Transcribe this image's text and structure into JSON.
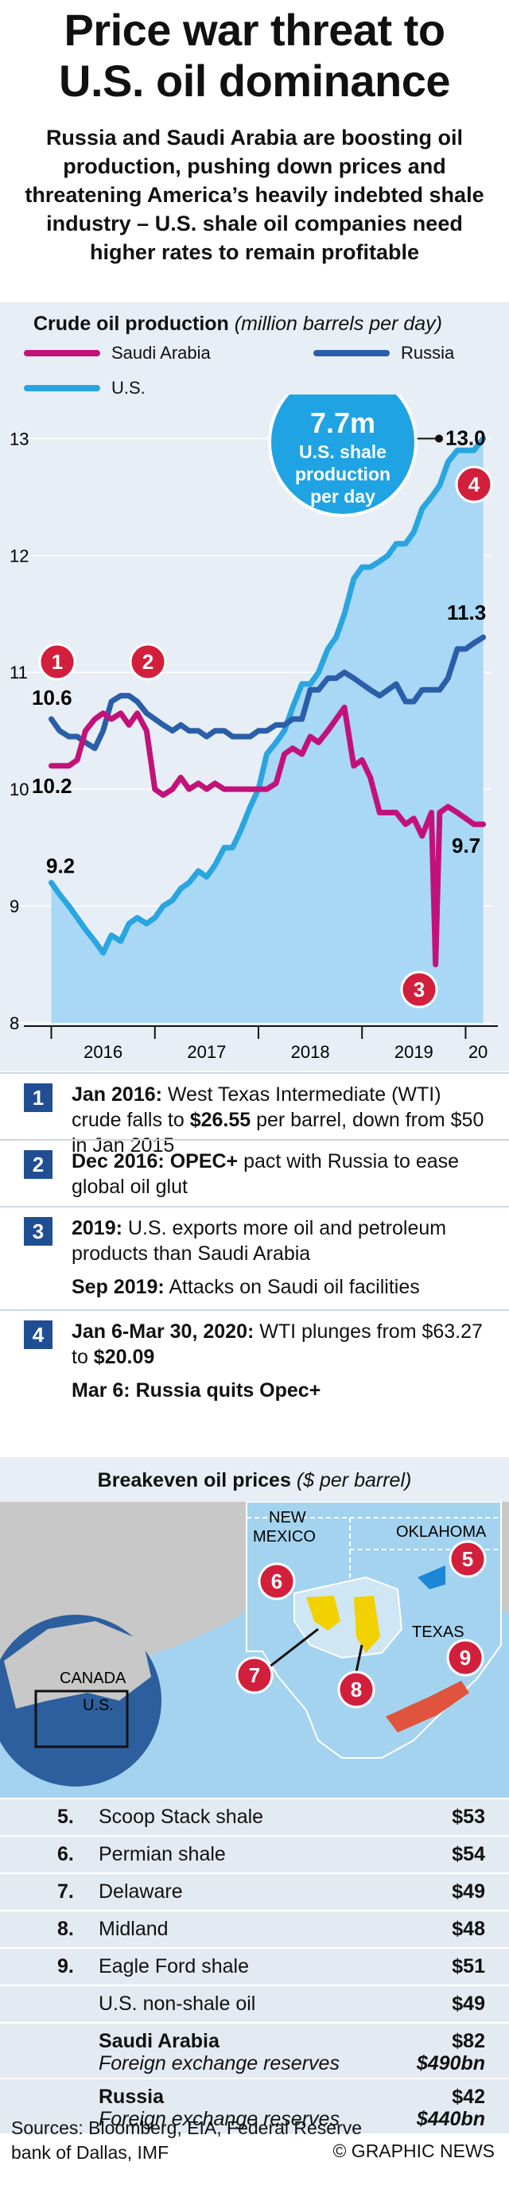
{
  "title_line1": "Price war threat to",
  "title_line2": "U.S. oil dominance",
  "subtitle": "Russia and Saudi Arabia are boosting oil production, pushing down prices and threatening America’s heavily indebted shale industry – U.S. shale oil companies need higher rates to remain profitable",
  "chart_data": {
    "type": "line",
    "title": "Crude oil production",
    "title_unit": "(million barrels per day)",
    "ylim": [
      8,
      13.2
    ],
    "yticks": [
      8,
      9,
      10,
      11,
      12,
      13
    ],
    "x_range": [
      2015.95,
      2020.25
    ],
    "xticks": [
      "2016",
      "2017",
      "2018",
      "2019",
      "20"
    ],
    "legend": [
      "Saudi Arabia",
      "Russia",
      "U.S."
    ],
    "series": [
      {
        "name": "Saudi Arabia",
        "color": "#c2127a",
        "x": [
          2016.0,
          2016.08,
          2016.17,
          2016.25,
          2016.33,
          2016.42,
          2016.5,
          2016.58,
          2016.67,
          2016.75,
          2016.83,
          2016.92,
          2017.0,
          2017.08,
          2017.17,
          2017.25,
          2017.33,
          2017.42,
          2017.5,
          2017.58,
          2017.67,
          2017.75,
          2017.83,
          2017.92,
          2018.0,
          2018.08,
          2018.17,
          2018.25,
          2018.33,
          2018.42,
          2018.5,
          2018.58,
          2018.67,
          2018.75,
          2018.83,
          2018.92,
          2019.0,
          2019.08,
          2019.17,
          2019.25,
          2019.33,
          2019.42,
          2019.5,
          2019.58,
          2019.67,
          2019.71,
          2019.75,
          2019.83,
          2019.92,
          2020.0,
          2020.08,
          2020.17
        ],
        "values": [
          10.2,
          10.2,
          10.2,
          10.25,
          10.5,
          10.6,
          10.65,
          10.6,
          10.65,
          10.55,
          10.65,
          10.5,
          10.0,
          9.95,
          10.0,
          10.1,
          10.0,
          10.05,
          10.0,
          10.05,
          10.0,
          10.0,
          10.0,
          10.0,
          10.0,
          10.0,
          10.05,
          10.3,
          10.35,
          10.3,
          10.45,
          10.4,
          10.5,
          10.6,
          10.7,
          10.2,
          10.25,
          10.1,
          9.8,
          9.8,
          9.8,
          9.7,
          9.75,
          9.6,
          9.8,
          8.5,
          9.8,
          9.85,
          9.8,
          9.75,
          9.7,
          9.7
        ]
      },
      {
        "name": "Russia",
        "color": "#2a5ea8",
        "x": [
          2016.0,
          2016.08,
          2016.17,
          2016.25,
          2016.33,
          2016.42,
          2016.5,
          2016.58,
          2016.67,
          2016.75,
          2016.83,
          2016.92,
          2017.0,
          2017.08,
          2017.17,
          2017.25,
          2017.33,
          2017.42,
          2017.5,
          2017.58,
          2017.67,
          2017.75,
          2017.83,
          2017.92,
          2018.0,
          2018.08,
          2018.17,
          2018.25,
          2018.33,
          2018.42,
          2018.5,
          2018.58,
          2018.67,
          2018.75,
          2018.83,
          2018.92,
          2019.0,
          2019.08,
          2019.17,
          2019.25,
          2019.33,
          2019.42,
          2019.5,
          2019.58,
          2019.67,
          2019.75,
          2019.83,
          2019.92,
          2020.0,
          2020.08,
          2020.17
        ],
        "values": [
          10.6,
          10.5,
          10.45,
          10.45,
          10.4,
          10.35,
          10.5,
          10.75,
          10.8,
          10.8,
          10.75,
          10.65,
          10.6,
          10.55,
          10.5,
          10.55,
          10.5,
          10.5,
          10.45,
          10.5,
          10.5,
          10.45,
          10.45,
          10.45,
          10.5,
          10.5,
          10.55,
          10.55,
          10.6,
          10.6,
          10.85,
          10.85,
          10.95,
          10.95,
          11.0,
          10.95,
          10.9,
          10.85,
          10.8,
          10.85,
          10.9,
          10.75,
          10.75,
          10.85,
          10.85,
          10.85,
          10.95,
          11.2,
          11.2,
          11.25,
          11.3
        ]
      },
      {
        "name": "U.S.",
        "color": "#29a5e0",
        "x": [
          2016.0,
          2016.08,
          2016.17,
          2016.25,
          2016.33,
          2016.42,
          2016.5,
          2016.58,
          2016.67,
          2016.75,
          2016.83,
          2016.92,
          2017.0,
          2017.08,
          2017.17,
          2017.25,
          2017.33,
          2017.42,
          2017.5,
          2017.58,
          2017.67,
          2017.75,
          2017.83,
          2017.92,
          2018.0,
          2018.08,
          2018.17,
          2018.25,
          2018.33,
          2018.42,
          2018.5,
          2018.58,
          2018.67,
          2018.75,
          2018.83,
          2018.92,
          2019.0,
          2019.08,
          2019.17,
          2019.25,
          2019.33,
          2019.42,
          2019.5,
          2019.58,
          2019.67,
          2019.75,
          2019.83,
          2019.92,
          2020.0,
          2020.08,
          2020.17
        ],
        "values": [
          9.2,
          9.1,
          9.0,
          8.9,
          8.8,
          8.7,
          8.6,
          8.75,
          8.7,
          8.85,
          8.9,
          8.85,
          8.9,
          9.0,
          9.05,
          9.15,
          9.2,
          9.3,
          9.25,
          9.35,
          9.5,
          9.5,
          9.65,
          9.85,
          10.0,
          10.3,
          10.4,
          10.5,
          10.7,
          10.9,
          10.9,
          11.0,
          11.2,
          11.3,
          11.5,
          11.8,
          11.9,
          11.9,
          11.95,
          12.0,
          12.1,
          12.1,
          12.2,
          12.4,
          12.5,
          12.6,
          12.8,
          12.9,
          12.9,
          12.9,
          13.0
        ]
      }
    ],
    "annotations": {
      "ru_label": "10.6",
      "sa_start_label": "10.2",
      "us_start_label": "9.2",
      "ru_end_label": "11.3",
      "us_end_label": "13.0",
      "sa_end_label": "9.7",
      "markers": [
        "1",
        "2",
        "3",
        "4"
      ],
      "callout": [
        "7.7m",
        "U.S. shale",
        "production",
        "per day"
      ]
    }
  },
  "events": [
    {
      "num": "1",
      "lines": [
        {
          "bold": "Jan 2016:",
          "text": " West Texas Intermediate (WTI) crude falls to ",
          "bold2": "$26.55",
          "text2": " per barrel, down from $50 in Jan 2015"
        }
      ]
    },
    {
      "num": "2",
      "lines": [
        {
          "bold": "Dec 2016: OPEC+",
          "text": " pact with Russia to ease global oil glut"
        }
      ]
    },
    {
      "num": "3",
      "lines": [
        {
          "bold": "2019:",
          "text": " U.S. exports more oil and petroleum products than Saudi Arabia"
        },
        {
          "bold": "Sep 2019:",
          "text": " Attacks on Saudi oil facilities"
        }
      ]
    },
    {
      "num": "4",
      "lines": [
        {
          "bold": "Jan 6-Mar 30, 2020:",
          "text": " WTI plunges from $63.27 to ",
          "bold2": "$20.09"
        },
        {
          "bold": "Mar 6: Russia quits Opec+",
          "text": ""
        }
      ]
    }
  ],
  "map": {
    "heading": "Breakeven oil prices",
    "heading_unit": "($ per barrel)",
    "labels": {
      "new_mexico_1": "NEW",
      "new_mexico_2": "MEXICO",
      "oklahoma": "OKLAHOMA",
      "texas": "TEXAS",
      "canada": "CANADA",
      "us": "U.S."
    },
    "markers": [
      "5",
      "6",
      "7",
      "8",
      "9"
    ]
  },
  "table": [
    {
      "n": "5.",
      "label": "Scoop Stack shale",
      "value": "$53"
    },
    {
      "n": "6.",
      "label": "Permian shale",
      "value": "$54"
    },
    {
      "n": "7.",
      "label": "Delaware",
      "value": "$49"
    },
    {
      "n": "8.",
      "label": "Midland",
      "value": "$48"
    },
    {
      "n": "9.",
      "label": "Eagle Ford shale",
      "value": "$51"
    },
    {
      "n": "",
      "label": "U.S. non-shale oil",
      "value": "$49"
    },
    {
      "n": "",
      "label": "Saudi Arabia",
      "value": "$82",
      "sub": "Foreign exchange reserves",
      "subvalue": "$490bn"
    },
    {
      "n": "",
      "label": "Russia",
      "value": "$42",
      "sub": "Foreign exchange reserves",
      "subvalue": "$440bn"
    }
  ],
  "sources": "Sources: Bloomberg, EIA, Federal Reserve bank of Dallas, IMF",
  "credit": "© GRAPHIC NEWS"
}
